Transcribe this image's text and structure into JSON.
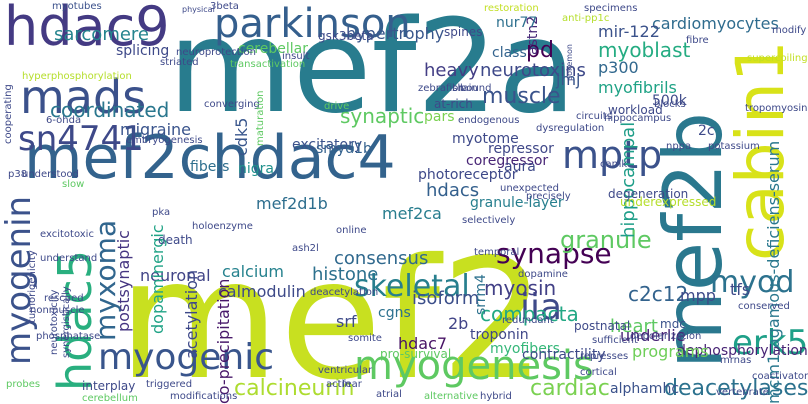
{
  "cloud": {
    "words": [
      {
        "text": "mef2a",
        "color": "#287c8e"
      },
      {
        "text": "mef2",
        "color": "#c8e020"
      },
      {
        "text": "mef2chdac4",
        "color": "#33638d"
      },
      {
        "text": "mef2b",
        "color": "#2a788e"
      },
      {
        "text": "cabin1",
        "color": "#d8e219"
      },
      {
        "text": "hdac9",
        "color": "#443a83"
      },
      {
        "text": "parkinson",
        "color": "#355f8d"
      },
      {
        "text": "mads",
        "color": "#3b518b"
      },
      {
        "text": "sn4741",
        "color": "#3e4989"
      },
      {
        "text": "hdac5",
        "color": "#29af7f"
      },
      {
        "text": "myogenin",
        "color": "#3b528b"
      },
      {
        "text": "myxoma",
        "color": "#31668e"
      },
      {
        "text": "myogenic",
        "color": "#39558c"
      },
      {
        "text": "myogenesis",
        "color": "#5ec962"
      },
      {
        "text": "erk5",
        "color": "#1fa088"
      },
      {
        "text": "skeletal",
        "color": "#277f8e"
      },
      {
        "text": "synapse",
        "color": "#440154"
      },
      {
        "text": "iia",
        "color": "#3e4a89"
      },
      {
        "text": "mptp",
        "color": "#3b528b"
      },
      {
        "text": "myod",
        "color": "#2c728e"
      },
      {
        "text": "mef2d1b",
        "color": "#2e6e8e"
      },
      {
        "text": "mef2ca",
        "color": "#287d8e"
      },
      {
        "text": "hdacs",
        "color": "#34608d"
      },
      {
        "text": "sarcomere",
        "color": "#25848e"
      },
      {
        "text": "coordinated",
        "color": "#2a778e"
      },
      {
        "text": "migraine",
        "color": "#3a548c"
      },
      {
        "text": "synaptic",
        "color": "#5ec962"
      },
      {
        "text": "muscle",
        "color": "#3a538b"
      },
      {
        "text": "myoblast",
        "color": "#25ac82"
      },
      {
        "text": "cardiomyocytes",
        "color": "#2f6c8e"
      },
      {
        "text": "hypertrophy",
        "color": "#39568c"
      },
      {
        "text": "neurotoxins",
        "color": "#3e4989"
      },
      {
        "text": "heavy",
        "color": "#433e85"
      },
      {
        "text": "pd",
        "color": "#440154"
      },
      {
        "text": "astn2",
        "color": "#482878"
      },
      {
        "text": "myofibrils",
        "color": "#20a386"
      },
      {
        "text": "jmj",
        "color": "#39568c"
      },
      {
        "text": "p300",
        "color": "#31688e"
      },
      {
        "text": "mir-122",
        "color": "#3b528b"
      },
      {
        "text": "calcineurin",
        "color": "#addc30"
      },
      {
        "text": "cardiac",
        "color": "#7ad151"
      },
      {
        "text": "deacetylases",
        "color": "#2c728e"
      },
      {
        "text": "alphamhc",
        "color": "#3b528b"
      },
      {
        "text": "granule",
        "color": "#5ec962"
      },
      {
        "text": "myosin",
        "color": "#424086"
      },
      {
        "text": "compacta",
        "color": "#22a884"
      },
      {
        "text": "heart",
        "color": "#5ec962"
      },
      {
        "text": "isoform",
        "color": "#3c4f8a"
      },
      {
        "text": "consensus",
        "color": "#30698e"
      },
      {
        "text": "histone",
        "color": "#2d718e"
      },
      {
        "text": "neuronal",
        "color": "#414487"
      },
      {
        "text": "calcium",
        "color": "#26828e"
      },
      {
        "text": "calmodulin",
        "color": "#3e4a89"
      },
      {
        "text": "acetylation",
        "color": "#3e4989"
      },
      {
        "text": "co-precipitation",
        "color": "#48186a"
      },
      {
        "text": "dopaminergic",
        "color": "#20a386"
      },
      {
        "text": "postsynaptic",
        "color": "#453581"
      },
      {
        "text": "c2c12",
        "color": "#33638d"
      },
      {
        "text": "mpp",
        "color": "#3e4a89"
      },
      {
        "text": "tfs",
        "color": "#3e4a89"
      },
      {
        "text": "mcm1-agamous-deficiens-serum",
        "color": "#2a788e"
      },
      {
        "text": "dephosphorylation",
        "color": "#482475"
      },
      {
        "text": "hdac7",
        "color": "#471365"
      },
      {
        "text": "srf",
        "color": "#3e4a89"
      },
      {
        "text": "cgns",
        "color": "#2c718e"
      },
      {
        "text": "2b",
        "color": "#414487"
      },
      {
        "text": "myofibers",
        "color": "#35b779"
      },
      {
        "text": "underlie",
        "color": "#482475"
      },
      {
        "text": "programs",
        "color": "#6ece58"
      },
      {
        "text": "troponin",
        "color": "#3f4788"
      },
      {
        "text": "contractility",
        "color": "#3e4a89"
      },
      {
        "text": "mdc",
        "color": "#3b528b"
      },
      {
        "text": "srrm4",
        "color": "#2c718e"
      },
      {
        "text": "fibers",
        "color": "#2e6f8e"
      },
      {
        "text": "nigra",
        "color": "#21918c"
      },
      {
        "text": "excitatory",
        "color": "#3b528b"
      },
      {
        "text": "cdk5",
        "color": "#39568c"
      },
      {
        "text": "smyd1b",
        "color": "#34618d"
      },
      {
        "text": "myotome",
        "color": "#3e4989"
      },
      {
        "text": "pars",
        "color": "#7ad151"
      },
      {
        "text": "500k",
        "color": "#3e4a89"
      },
      {
        "text": "2c",
        "color": "#3e4a89"
      },
      {
        "text": "hippocampal",
        "color": "#1f9e89"
      },
      {
        "text": "repressor",
        "color": "#3f4788"
      },
      {
        "text": "coregressor",
        "color": "#482576"
      },
      {
        "text": "photoreceptor",
        "color": "#3e4989"
      },
      {
        "text": "aura",
        "color": "#3e4989"
      },
      {
        "text": "granule-layer",
        "color": "#277f8e"
      },
      {
        "text": "myotubes",
        "color": "#3b518b"
      },
      {
        "text": "splicing",
        "color": "#3e4989"
      },
      {
        "text": "3beta",
        "color": "#3e4989"
      },
      {
        "text": "cerebellar",
        "color": "#5ec962"
      },
      {
        "text": "gsk3beta",
        "color": "#3e4a89"
      },
      {
        "text": "spines",
        "color": "#3e4989"
      },
      {
        "text": "class",
        "color": "#33638d"
      },
      {
        "text": "nur77",
        "color": "#2d708e"
      },
      {
        "text": "insult",
        "color": "#3e4989"
      },
      {
        "text": "striated",
        "color": "#3e4989"
      },
      {
        "text": "neuroprotection",
        "color": "#3e4989"
      },
      {
        "text": "bound",
        "color": "#3e4989"
      },
      {
        "text": "workload",
        "color": "#3e4989"
      },
      {
        "text": "hippocampus",
        "color": "#3e4989"
      },
      {
        "text": "physical",
        "color": "#3e4989"
      },
      {
        "text": "anti-pp1c",
        "color": "#b5de2b"
      },
      {
        "text": "restoration",
        "color": "#c2df23"
      },
      {
        "text": "specimens",
        "color": "#3e4989"
      },
      {
        "text": "modify",
        "color": "#3e4989"
      },
      {
        "text": "fibre",
        "color": "#3e4989"
      },
      {
        "text": "pokemon",
        "color": "#3e4989"
      },
      {
        "text": "zebrafish",
        "color": "#3e4989"
      },
      {
        "text": "at-rich",
        "color": "#3e4989"
      },
      {
        "text": "dysregulation",
        "color": "#3e4989"
      },
      {
        "text": "circuits",
        "color": "#3e4989"
      },
      {
        "text": "blocks",
        "color": "#3e4989"
      },
      {
        "text": "nppa",
        "color": "#3e4989"
      },
      {
        "text": "camk",
        "color": "#3e4989"
      },
      {
        "text": "potassium",
        "color": "#3e4989"
      },
      {
        "text": "coactivator",
        "color": "#3e4989"
      },
      {
        "text": "degeneration",
        "color": "#3e4989"
      },
      {
        "text": "underexpressed",
        "color": "#b5de2b"
      },
      {
        "text": "precisely",
        "color": "#3e4989"
      },
      {
        "text": "unexpected",
        "color": "#3e4989"
      },
      {
        "text": "selectively",
        "color": "#3e4989"
      },
      {
        "text": "temporal",
        "color": "#3e4989"
      },
      {
        "text": "dopamine",
        "color": "#3e4989"
      },
      {
        "text": "postnatal",
        "color": "#3e4989"
      },
      {
        "text": "depolarization",
        "color": "#3e4989"
      },
      {
        "text": "sufficient",
        "color": "#3e4989"
      },
      {
        "text": "represses",
        "color": "#3e4989"
      },
      {
        "text": "conserved",
        "color": "#3e4989"
      },
      {
        "text": "mrnas",
        "color": "#3e4989"
      },
      {
        "text": "vertebrate",
        "color": "#3e4989"
      },
      {
        "text": "cortical",
        "color": "#3e4989"
      },
      {
        "text": "alternative",
        "color": "#5ec962"
      },
      {
        "text": "hybrid",
        "color": "#3e4989"
      },
      {
        "text": "atrial",
        "color": "#3e4989"
      },
      {
        "text": "redundant",
        "color": "#3e4989"
      },
      {
        "text": "pro-survival",
        "color": "#5ec962"
      },
      {
        "text": "somite",
        "color": "#3e4989"
      },
      {
        "text": "ventricular",
        "color": "#3e4989"
      },
      {
        "text": "actin",
        "color": "#3e4989"
      },
      {
        "text": "fear",
        "color": "#3e4989"
      },
      {
        "text": "modifications",
        "color": "#3e4989"
      },
      {
        "text": "triggered",
        "color": "#3e4989"
      },
      {
        "text": "interplay",
        "color": "#3e4989"
      },
      {
        "text": "cerebellum",
        "color": "#5ec962"
      },
      {
        "text": "probes",
        "color": "#5ec962"
      },
      {
        "text": "phosphatase",
        "color": "#3e4989"
      },
      {
        "text": "rescued",
        "color": "#3e4989"
      },
      {
        "text": "nonmuscle",
        "color": "#3e4989"
      },
      {
        "text": "excitotoxic",
        "color": "#3e4989"
      },
      {
        "text": "understand",
        "color": "#3e4989"
      },
      {
        "text": "pka",
        "color": "#3e4989"
      },
      {
        "text": "death",
        "color": "#3e4989"
      },
      {
        "text": "slow",
        "color": "#5ec962"
      },
      {
        "text": "understood",
        "color": "#3e4989"
      },
      {
        "text": "embryogenesis",
        "color": "#3e4989"
      },
      {
        "text": "converging",
        "color": "#3e4989"
      },
      {
        "text": "transactivation",
        "color": "#5ec962"
      },
      {
        "text": "drive",
        "color": "#5ec962"
      },
      {
        "text": "6-ohda",
        "color": "#3e4989"
      },
      {
        "text": "holoenzyme",
        "color": "#3e4989"
      },
      {
        "text": "online",
        "color": "#3e4989"
      },
      {
        "text": "ash2l",
        "color": "#3e4989"
      },
      {
        "text": "deacetylation",
        "color": "#3e4989"
      },
      {
        "text": "p38",
        "color": "#3e4989"
      },
      {
        "text": "hyperphosphorylation",
        "color": "#b5de2b"
      },
      {
        "text": "cooperating",
        "color": "#3e4989"
      },
      {
        "text": "synergistically",
        "color": "#3e4989"
      },
      {
        "text": "neurotoxicity",
        "color": "#3e4989"
      },
      {
        "text": "tumorigenicity",
        "color": "#3e4989"
      },
      {
        "text": "maturation",
        "color": "#5ec962"
      },
      {
        "text": "brain",
        "color": "#3e4989"
      },
      {
        "text": "endogenous",
        "color": "#3e4989"
      },
      {
        "text": "supercoiling",
        "color": "#c2df23"
      },
      {
        "text": "tropomyosin",
        "color": "#3e4989"
      }
    ]
  }
}
